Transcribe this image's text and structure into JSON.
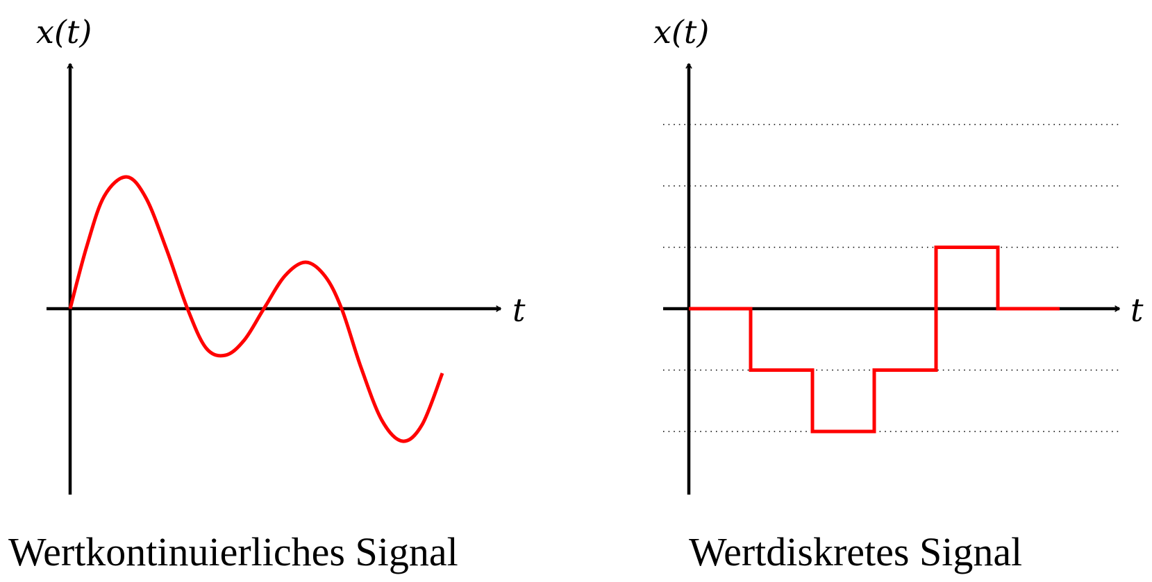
{
  "colors": {
    "signal": "#ff0000",
    "axis": "#000000",
    "grid": "#000000"
  },
  "panels": [
    {
      "caption": "Wertkontinuierliches Signal",
      "y_axis_label": "x(t)",
      "x_axis_label": "t",
      "signal": {
        "kind": "continuous",
        "formula_note": "",
        "t_range": [
          0,
          9.5
        ],
        "samples": []
      }
    },
    {
      "caption": "Wertdiskretes Signal",
      "y_axis_label": "x(t)",
      "x_axis_label": "t",
      "levels": [
        2,
        1,
        -1,
        -2,
        3
      ],
      "signal": {
        "kind": "discrete-steps",
        "steps": [
          {
            "t_start": 0,
            "t_end": 1,
            "value": 0
          },
          {
            "t_start": 1,
            "t_end": 2,
            "value": -1
          },
          {
            "t_start": 2,
            "t_end": 3,
            "value": -2
          },
          {
            "t_start": 3,
            "t_end": 4,
            "value": -1
          },
          {
            "t_start": 4,
            "t_end": 5,
            "value": 1
          },
          {
            "t_start": 5,
            "t_end": 6,
            "value": 0
          }
        ]
      }
    }
  ]
}
